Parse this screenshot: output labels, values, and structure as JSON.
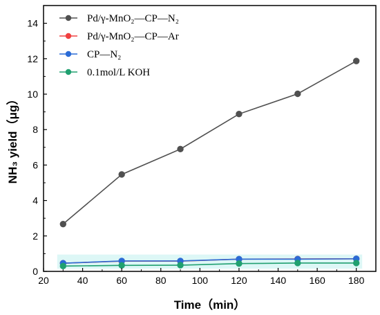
{
  "chart_data": {
    "type": "line",
    "xlabel": "Time（min）",
    "ylabel": "NH₃ yield（μg）",
    "xlim": [
      20,
      190
    ],
    "ylim": [
      0,
      15
    ],
    "xticks": [
      "20",
      "40",
      "60",
      "80",
      "100",
      "120",
      "140",
      "160",
      "180"
    ],
    "yticks": [
      "0",
      "2",
      "4",
      "6",
      "8",
      "10",
      "12",
      "14"
    ],
    "x": [
      30,
      60,
      90,
      120,
      150,
      180
    ],
    "grid": false,
    "legend_position": "top-left",
    "series": [
      {
        "name": "Pd/γ-MnO₂—CP—N₂",
        "color": "#505050",
        "values": [
          2.67,
          5.47,
          6.9,
          8.88,
          10.02,
          11.87
        ]
      },
      {
        "name": "Pd/γ-MnO₂—CP—Ar",
        "color": "#f04040",
        "values": [
          0.46,
          0.58,
          0.58,
          0.69,
          0.7,
          0.71
        ]
      },
      {
        "name": "CP—N₂",
        "color": "#2a6bd6",
        "values": [
          0.46,
          0.59,
          0.59,
          0.69,
          0.69,
          0.71
        ]
      },
      {
        "name": "0.1mol/L KOH",
        "color": "#20a070",
        "values": [
          0.3,
          0.34,
          0.35,
          0.44,
          0.47,
          0.47
        ]
      }
    ]
  }
}
